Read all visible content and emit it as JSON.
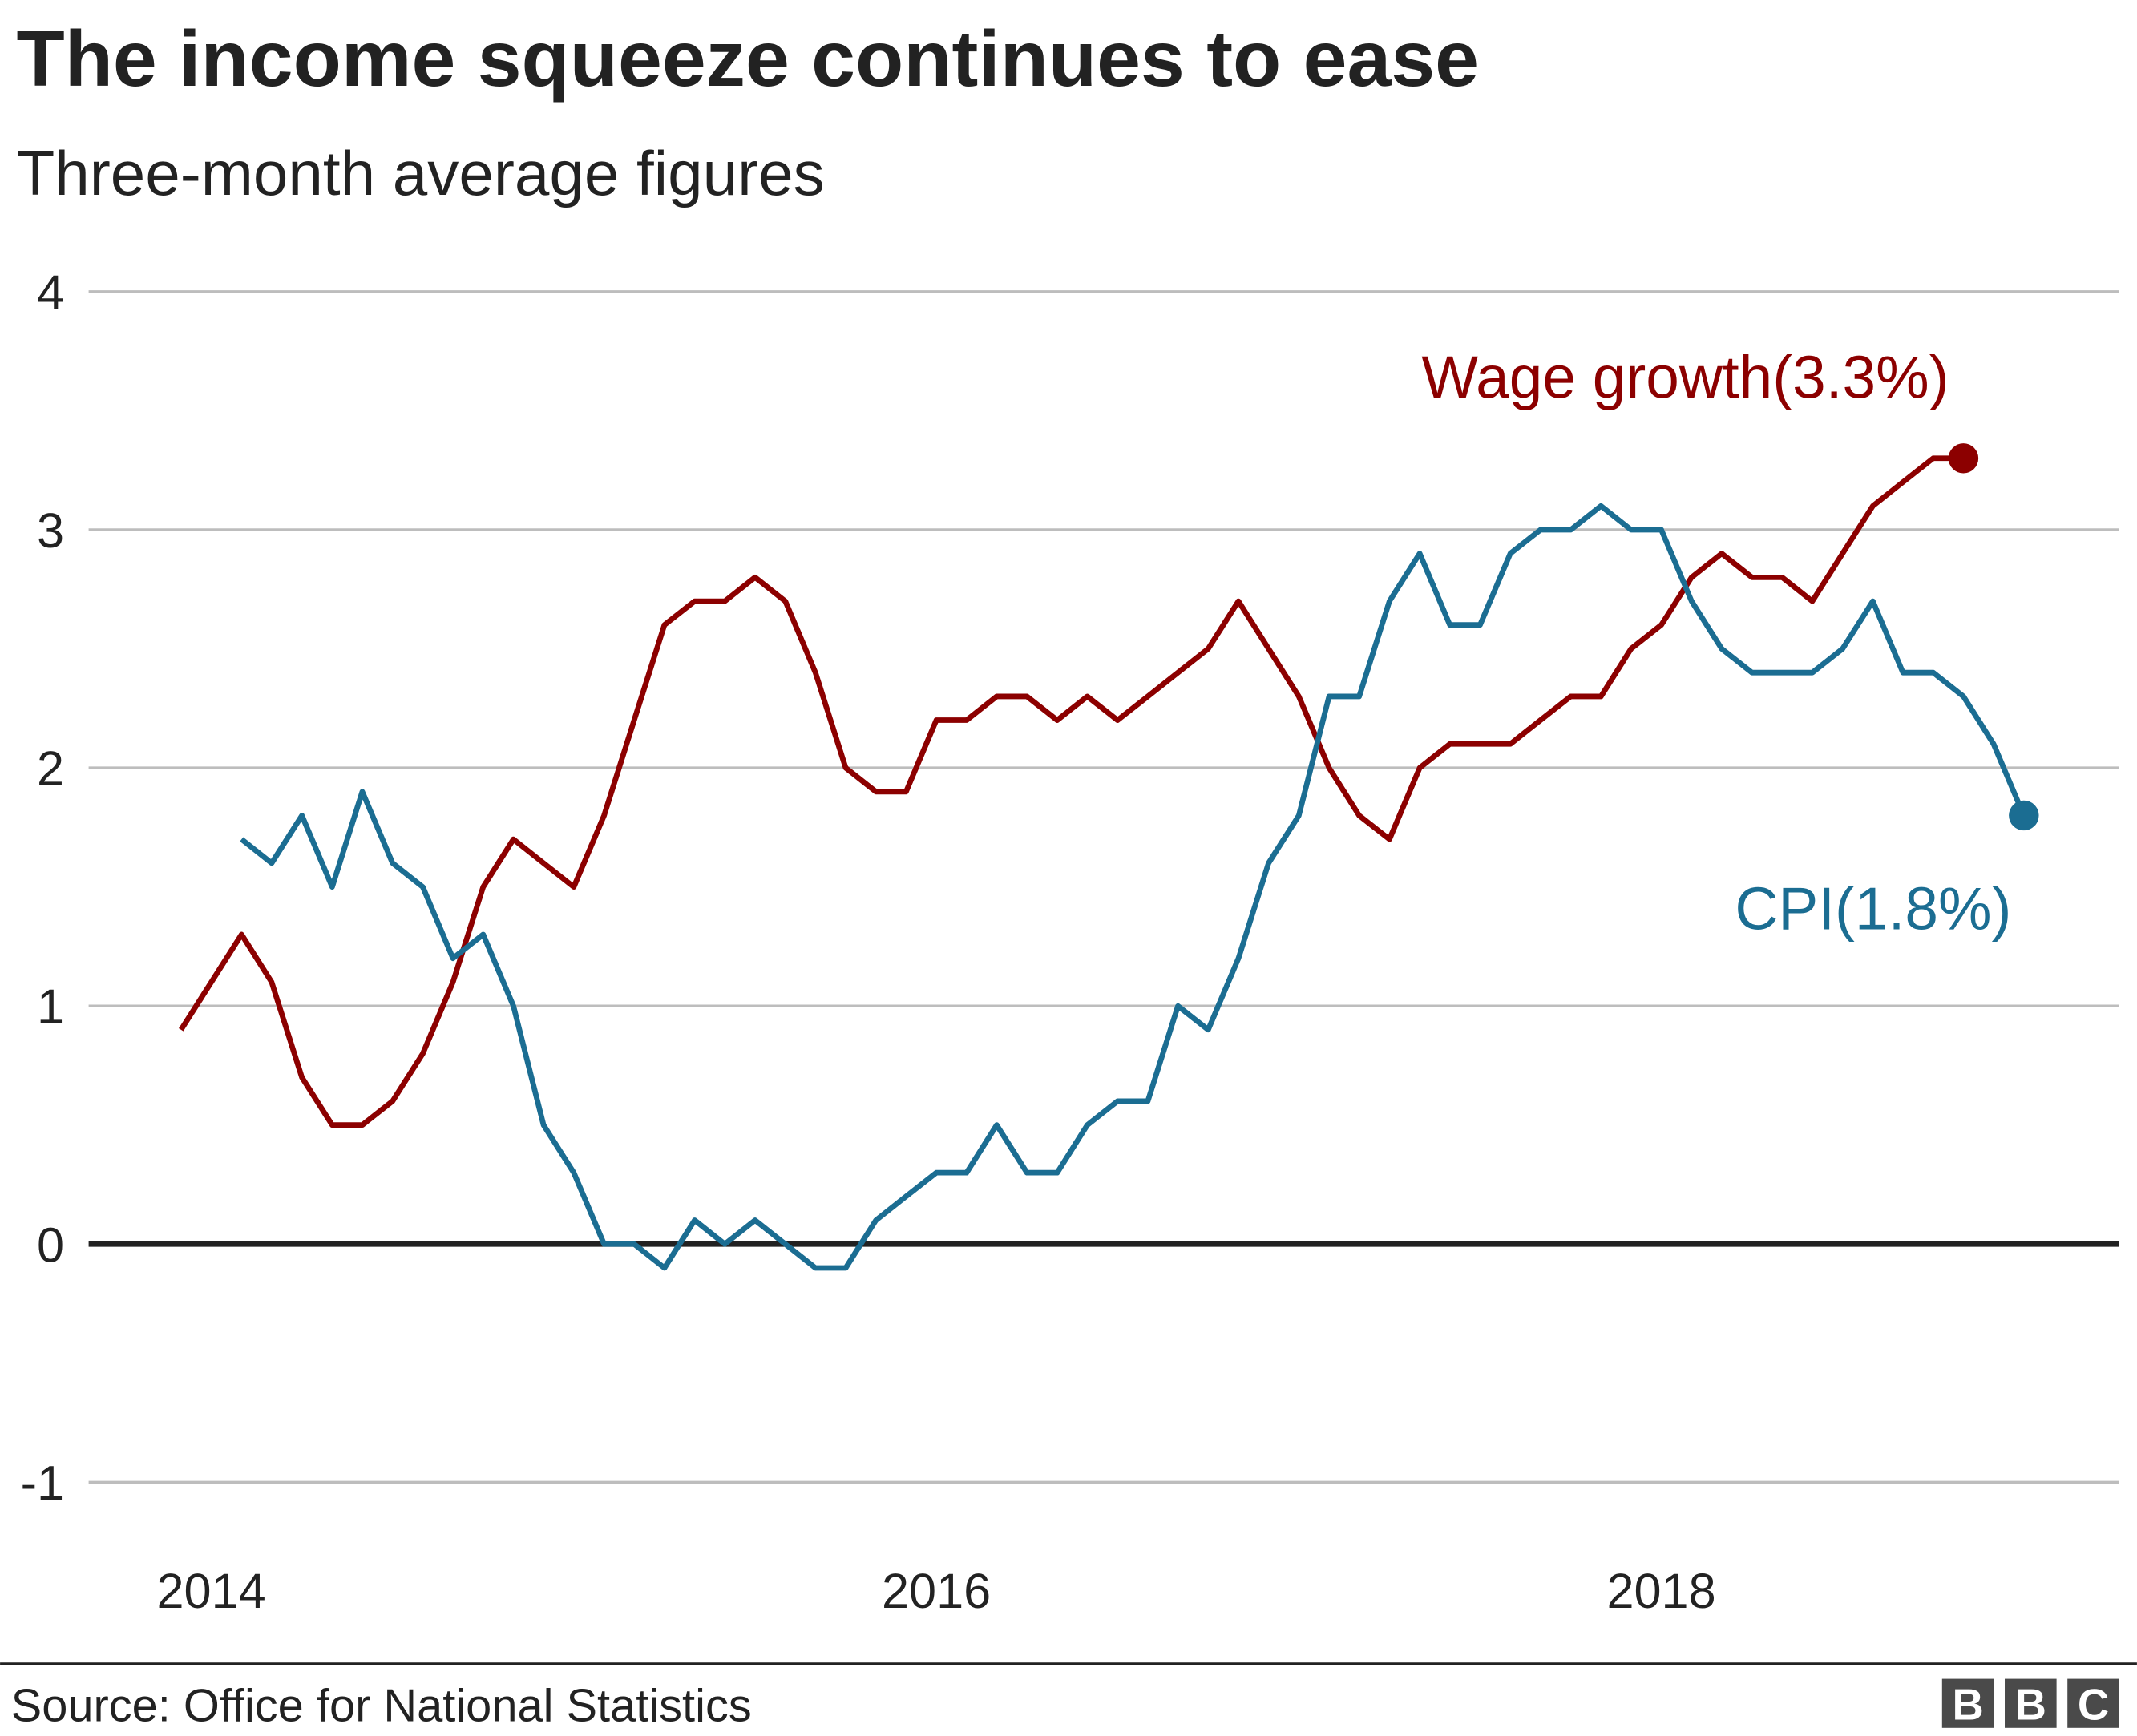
{
  "header": {
    "title": "The income squeeze continues to ease",
    "subtitle": "Three-month average figures"
  },
  "footer": {
    "source": "Source: Office for National Statistics",
    "logo": [
      "B",
      "B",
      "C"
    ]
  },
  "chart_data": {
    "type": "line",
    "title": "The income squeeze continues to ease",
    "subtitle": "Three-month average figures",
    "xlabel": "",
    "ylabel": "",
    "ylim": [
      -1,
      4
    ],
    "yticks": [
      "4",
      "3",
      "2",
      "1",
      "0",
      "-1"
    ],
    "xticks": [
      "2014",
      "2016",
      "2018"
    ],
    "grid": true,
    "legend": "inline labels at line ends",
    "series": [
      {
        "name": "Wage growth(3.3%)",
        "color": "#8c0000",
        "x_start": "2013-12",
        "frequency": "monthly",
        "values": [
          0.9,
          1.1,
          1.3,
          1.1,
          0.7,
          0.5,
          0.5,
          0.6,
          0.8,
          1.1,
          1.5,
          1.7,
          1.6,
          1.5,
          1.8,
          2.2,
          2.6,
          2.7,
          2.7,
          2.8,
          2.7,
          2.4,
          2.0,
          1.9,
          1.9,
          2.2,
          2.2,
          2.3,
          2.3,
          2.2,
          2.3,
          2.2,
          2.3,
          2.4,
          2.5,
          2.7,
          2.5,
          2.3,
          2.0,
          1.8,
          1.7,
          2.0,
          2.1,
          2.1,
          2.1,
          2.2,
          2.3,
          2.3,
          2.5,
          2.6,
          2.8,
          2.9,
          2.8,
          2.8,
          2.7,
          2.9,
          3.1,
          3.2,
          3.3,
          3.3
        ]
      },
      {
        "name": "CPI(1.8%)",
        "color": "#1b6d92",
        "x_start": "2014-02",
        "frequency": "monthly",
        "values": [
          1.7,
          1.6,
          1.8,
          1.5,
          1.9,
          1.6,
          1.5,
          1.2,
          1.3,
          1.0,
          0.5,
          0.3,
          0.0,
          0.0,
          -0.1,
          0.1,
          0.0,
          0.1,
          0.0,
          -0.1,
          -0.1,
          0.1,
          0.2,
          0.3,
          0.3,
          0.5,
          0.3,
          0.3,
          0.5,
          0.6,
          0.6,
          1.0,
          0.9,
          1.2,
          1.6,
          1.8,
          2.3,
          2.3,
          2.7,
          2.9,
          2.6,
          2.6,
          2.9,
          3.0,
          3.0,
          3.1,
          3.0,
          3.0,
          2.7,
          2.5,
          2.4,
          2.4,
          2.4,
          2.5,
          2.7,
          2.4,
          2.4,
          2.3,
          2.1,
          1.8
        ]
      }
    ]
  }
}
